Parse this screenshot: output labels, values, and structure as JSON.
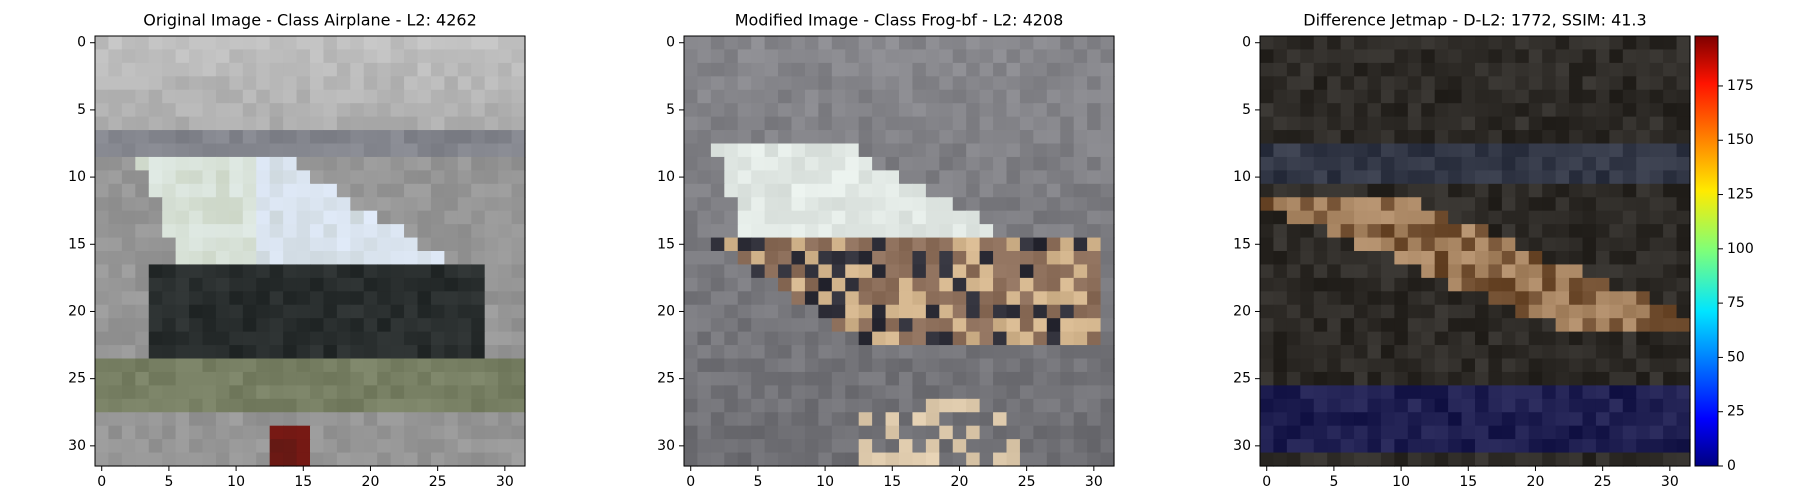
{
  "chart_data": [
    {
      "type": "image",
      "title": "Original Image - Class Airplane - L2: 4262",
      "title_color": "#000000",
      "xlim": [
        -0.5,
        31.5
      ],
      "ylim": [
        31.5,
        -0.5
      ],
      "xticks": [
        0,
        5,
        10,
        15,
        20,
        25,
        30
      ],
      "yticks": [
        0,
        5,
        10,
        15,
        20,
        25,
        30
      ]
    },
    {
      "type": "image",
      "title": "Modified Image - Class Frog-bf - L2: 4208",
      "title_color": "#ff0000",
      "xlim": [
        -0.5,
        31.5
      ],
      "ylim": [
        31.5,
        -0.5
      ],
      "xticks": [
        0,
        5,
        10,
        15,
        20,
        25,
        30
      ],
      "yticks": [
        0,
        5,
        10,
        15,
        20,
        25,
        30
      ]
    },
    {
      "type": "image",
      "title": "Difference Jetmap - D-L2: 1772, SSIM: 41.3",
      "title_color": "#000000",
      "xlim": [
        -0.5,
        31.5
      ],
      "ylim": [
        31.5,
        -0.5
      ],
      "xticks": [
        0,
        5,
        10,
        15,
        20,
        25,
        30
      ],
      "yticks": [
        0,
        5,
        10,
        15,
        20,
        25,
        30
      ],
      "clim": [
        0,
        198
      ],
      "cticks": [
        0,
        25,
        50,
        75,
        100,
        125,
        150,
        175
      ],
      "colormap": "jet"
    }
  ]
}
